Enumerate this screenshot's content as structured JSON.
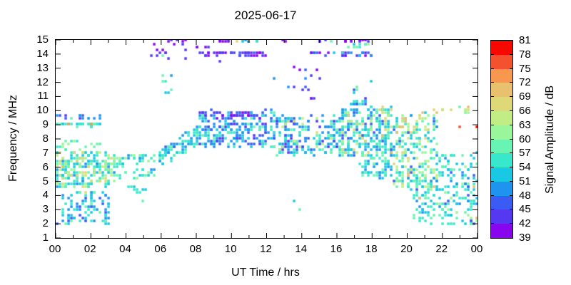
{
  "title": "2025-06-17",
  "axes": {
    "x": {
      "label": "UT Time / hrs",
      "range": [
        0,
        24
      ],
      "ticks": [
        "00",
        "02",
        "04",
        "06",
        "08",
        "10",
        "12",
        "14",
        "16",
        "18",
        "20",
        "22",
        "00"
      ],
      "minor_every_hour": true
    },
    "y": {
      "label": "Frequency / MHz",
      "range": [
        1,
        15
      ],
      "ticks": [
        "1",
        "2",
        "3",
        "4",
        "5",
        "6",
        "7",
        "8",
        "9",
        "10",
        "11",
        "12",
        "13",
        "14",
        "15"
      ]
    },
    "colorbar": {
      "label": "Signal Amplitude / dB",
      "range": [
        39,
        81
      ],
      "ticks": [
        "39",
        "42",
        "45",
        "48",
        "51",
        "54",
        "57",
        "60",
        "63",
        "66",
        "69",
        "72",
        "75",
        "78",
        "81"
      ]
    }
  },
  "chart_data": {
    "type": "scatter",
    "title": "2025-06-17",
    "xlabel": "UT Time / hrs",
    "ylabel": "Frequency / MHz",
    "zlabel": "Signal Amplitude / dB",
    "xlim": [
      0,
      24
    ],
    "ylim": [
      1,
      15
    ],
    "zlim": [
      39,
      81
    ],
    "grid": false,
    "marker": "square",
    "palette": [
      "#8806ee",
      "#5438f2",
      "#3a5cf4",
      "#1e94f0",
      "#19c8e2",
      "#38e8cc",
      "#68f4b2",
      "#9af69a",
      "#c0ee85",
      "#ded878",
      "#e9c06e",
      "#f8984e",
      "#f4512e",
      "#f70800"
    ],
    "palette_step_db": 3,
    "clusters": [
      {
        "name": "row-9.0MHz-night",
        "t": [
          0.0,
          2.7
        ],
        "f": [
          8.95,
          9.05
        ],
        "n": 40,
        "amps": [
          51,
          51,
          54,
          54,
          54,
          57
        ]
      },
      {
        "name": "row-9.6MHz-night",
        "t": [
          0.05,
          2.6
        ],
        "f": [
          9.5,
          9.7
        ],
        "n": 16,
        "amps": [
          45,
          45,
          48,
          42,
          48,
          57,
          60
        ]
      },
      {
        "name": "night-band-5-7MHz",
        "t": [
          0.0,
          3.3
        ],
        "f": [
          4.6,
          7.1
        ],
        "n": 240,
        "amps": [
          51,
          51,
          51,
          54,
          54,
          54,
          57,
          57,
          60,
          60,
          63,
          63,
          48,
          66
        ]
      },
      {
        "name": "night-band-top",
        "t": [
          0.0,
          2.6
        ],
        "f": [
          7.2,
          7.9
        ],
        "n": 18,
        "amps": [
          54,
          57,
          60,
          60
        ]
      },
      {
        "name": "night-tail",
        "t": [
          3.3,
          5.7
        ],
        "f": [
          5.2,
          7.0
        ],
        "n": 62,
        "amps": [
          48,
          51,
          51,
          54,
          54,
          57,
          57,
          60
        ]
      },
      {
        "name": "night-low-2-4MHz",
        "t": [
          0.35,
          3.1
        ],
        "f": [
          2.0,
          4.35
        ],
        "n": 92,
        "amps": [
          45,
          48,
          48,
          51,
          51,
          54,
          54,
          57
        ]
      },
      {
        "name": "low-sparse-4.5MHz",
        "t": [
          4.1,
          5.35
        ],
        "f": [
          4.15,
          4.65
        ],
        "n": 9,
        "amps": [
          51,
          54
        ]
      },
      {
        "name": "rising-band-morning",
        "t": [
          5.7,
          8.15
        ],
        "f": [
          6.5,
          8.3
        ],
        "n": 85,
        "amps": [
          45,
          48,
          48,
          51,
          51,
          54,
          54,
          57
        ],
        "trend": "rise",
        "spread": 1.4
      },
      {
        "name": "day-cluster-8-10MHz",
        "t": [
          8.15,
          12.6
        ],
        "f": [
          7.4,
          10.0
        ],
        "n": 230,
        "amps": [
          42,
          45,
          45,
          48,
          48,
          48,
          51,
          51,
          54,
          54,
          57
        ]
      },
      {
        "name": "day-top-violet",
        "t": [
          8.3,
          11.7
        ],
        "f": [
          9.5,
          9.95
        ],
        "n": 26,
        "amps": [
          39,
          42,
          42,
          45
        ]
      },
      {
        "name": "midday-band",
        "t": [
          12.6,
          16.2
        ],
        "f": [
          6.9,
          9.6
        ],
        "n": 200,
        "amps": [
          45,
          48,
          48,
          48,
          51,
          51,
          54,
          54,
          42,
          57,
          63
        ]
      },
      {
        "name": "afternoon-main",
        "t": [
          16.2,
          19.2
        ],
        "f": [
          6.8,
          10.25
        ],
        "n": 280,
        "amps": [
          45,
          48,
          48,
          51,
          51,
          51,
          54,
          54,
          54,
          57,
          57,
          60,
          63,
          66
        ]
      },
      {
        "name": "afternoon-low-tail",
        "t": [
          17.3,
          19.2
        ],
        "f": [
          5.2,
          6.9
        ],
        "n": 60,
        "amps": [
          48,
          51,
          51,
          54,
          54,
          57
        ]
      },
      {
        "name": "evening-cluster",
        "t": [
          19.2,
          21.7
        ],
        "f": [
          4.4,
          9.8
        ],
        "n": 250,
        "amps": [
          45,
          48,
          51,
          51,
          54,
          54,
          54,
          57,
          57,
          60,
          60,
          63,
          63,
          66,
          69
        ]
      },
      {
        "name": "evening-low",
        "t": [
          20.3,
          21.7
        ],
        "f": [
          2.0,
          5.3
        ],
        "n": 55,
        "amps": [
          48,
          51,
          51,
          54,
          54,
          57
        ]
      },
      {
        "name": "late-night-band",
        "t": [
          21.7,
          24.0
        ],
        "f": [
          1.9,
          7.0
        ],
        "n": 150,
        "amps": [
          45,
          48,
          51,
          51,
          51,
          54,
          54,
          54,
          57,
          57,
          60
        ]
      },
      {
        "name": "row-14MHz-morning",
        "t": [
          8.15,
          12.35
        ],
        "f": [
          13.92,
          14.08
        ],
        "n": 40,
        "amps": [
          39,
          39,
          39,
          42,
          42,
          45
        ]
      },
      {
        "name": "row-14MHz-afternoon",
        "t": [
          14.4,
          18.05
        ],
        "f": [
          13.9,
          14.1
        ],
        "n": 30,
        "amps": [
          39,
          39,
          42,
          42,
          45,
          48,
          51,
          54
        ]
      },
      {
        "name": "spots-14MHz-early",
        "t": [
          5.2,
          7.6
        ],
        "f": [
          13.3,
          14.9
        ],
        "n": 14,
        "amps": [
          39,
          42,
          42
        ]
      },
      {
        "name": "spots-14.5MHz-8h",
        "t": [
          8.0,
          8.9
        ],
        "f": [
          14.2,
          14.8
        ],
        "n": 4,
        "amps": [
          39,
          42
        ]
      },
      {
        "name": "row-15MHz-9-10h",
        "t": [
          9.25,
          10.1
        ],
        "f": [
          14.9,
          15.0
        ],
        "n": 6,
        "amps": [
          39,
          42
        ]
      },
      {
        "name": "row-15MHz-10-11.5h",
        "t": [
          10.25,
          11.55
        ],
        "f": [
          14.9,
          15.0
        ],
        "n": 12,
        "amps": [
          48,
          51,
          54,
          66,
          69,
          72
        ]
      },
      {
        "name": "row-15MHz-early",
        "t": [
          6.5,
          7.45
        ],
        "f": [
          14.9,
          15.0
        ],
        "n": 4,
        "amps": [
          39,
          42
        ]
      },
      {
        "name": "spots-15MHz-13h",
        "t": [
          12.85,
          13.1
        ],
        "f": [
          14.85,
          15.0
        ],
        "n": 2,
        "amps": [
          39
        ]
      },
      {
        "name": "spots-15MHz-15-16h",
        "t": [
          15.0,
          16.0
        ],
        "f": [
          14.85,
          15.0
        ],
        "n": 4,
        "amps": [
          39,
          42,
          57
        ]
      },
      {
        "name": "spots-15MHz-afternoon",
        "t": [
          16.4,
          17.85
        ],
        "f": [
          14.85,
          15.0
        ],
        "n": 10,
        "amps": [
          39,
          39,
          42
        ]
      },
      {
        "name": "row-14.6MHz-afternoon",
        "t": [
          16.5,
          17.9
        ],
        "f": [
          14.5,
          14.75
        ],
        "n": 9,
        "amps": [
          51,
          54,
          57,
          60
        ]
      },
      {
        "name": "mid-sparse-11-14MHz",
        "t": [
          12.4,
          15.2
        ],
        "f": [
          10.4,
          13.9
        ],
        "n": 16,
        "amps": [
          39,
          42,
          42,
          45,
          48
        ]
      },
      {
        "name": "spots-6h-11-12.5MHz",
        "t": [
          6.0,
          6.7
        ],
        "f": [
          11.2,
          12.5
        ],
        "n": 7,
        "amps": [
          48,
          51,
          54,
          57
        ]
      },
      {
        "name": "cluster-10.5MHz-17h",
        "t": [
          16.6,
          17.95
        ],
        "f": [
          10.35,
          10.8
        ],
        "n": 16,
        "amps": [
          42,
          45,
          48,
          51,
          54
        ]
      },
      {
        "name": "spots-17h-11-12MHz",
        "t": [
          16.9,
          18.35
        ],
        "f": [
          11.3,
          12.15
        ],
        "n": 5,
        "amps": [
          45,
          51,
          57,
          60
        ]
      },
      {
        "name": "row-10MHz-late",
        "t": [
          20.9,
          23.65
        ],
        "f": [
          9.85,
          10.2
        ],
        "n": 13,
        "amps": [
          57,
          60,
          63,
          63,
          66,
          69
        ]
      }
    ],
    "points": [
      [
        0.78,
        9.0,
        72
      ],
      [
        2.08,
        9.0,
        72
      ],
      [
        0.05,
        2.1,
        46
      ],
      [
        0.35,
        6.1,
        70
      ],
      [
        1.25,
        5.5,
        67
      ],
      [
        1.55,
        7.0,
        67
      ],
      [
        1.7,
        4.3,
        67
      ],
      [
        5.0,
        3.7,
        58
      ],
      [
        6.1,
        13.85,
        58
      ],
      [
        9.3,
        13.5,
        42
      ],
      [
        13.5,
        3.7,
        52
      ],
      [
        13.85,
        3.0,
        58
      ],
      [
        13.3,
        9.3,
        67
      ],
      [
        13.55,
        9.25,
        67
      ],
      [
        14.9,
        8.5,
        67
      ],
      [
        17.4,
        8.05,
        66
      ],
      [
        18.65,
        8.2,
        70
      ],
      [
        19.1,
        7.0,
        70
      ],
      [
        19.6,
        8.9,
        70
      ],
      [
        20.7,
        3.9,
        70
      ],
      [
        23.0,
        8.95,
        76
      ],
      [
        23.92,
        8.9,
        80
      ],
      [
        23.55,
        10.2,
        70
      ],
      [
        23.8,
        4.7,
        70
      ],
      [
        23.9,
        2.4,
        70
      ]
    ]
  }
}
